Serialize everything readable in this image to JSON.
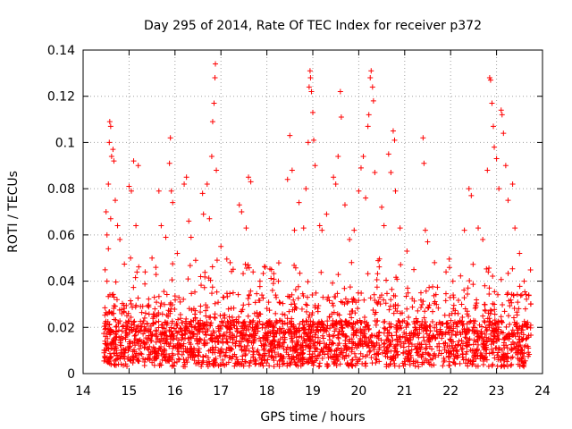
{
  "chart_data": {
    "type": "scatter",
    "title": "Day 295 of 2014, Rate Of TEC Index for receiver p372",
    "xlabel": "GPS time / hours",
    "ylabel": "ROTI / TECUs",
    "xlim": [
      14,
      24
    ],
    "ylim": [
      0,
      0.14
    ],
    "x_ticks": [
      14,
      15,
      16,
      17,
      18,
      19,
      20,
      21,
      22,
      23,
      24
    ],
    "y_ticks": [
      0,
      0.02,
      0.04,
      0.06,
      0.08,
      0.1,
      0.12,
      0.14
    ],
    "y_tick_labels": [
      "0",
      "0.02",
      "0.04",
      "0.06",
      "0.08",
      "0.1",
      "0.12",
      "0.14"
    ],
    "grid": true,
    "marker": "+",
    "color": "#ff0000",
    "x_range_data": [
      14.45,
      23.75
    ],
    "series": [
      {
        "name": "ROTI",
        "points": [
          [
            14.5,
            0.07
          ],
          [
            14.52,
            0.06
          ],
          [
            14.55,
            0.082
          ],
          [
            14.57,
            0.1
          ],
          [
            14.58,
            0.109
          ],
          [
            14.6,
            0.107
          ],
          [
            14.62,
            0.094
          ],
          [
            14.65,
            0.097
          ],
          [
            14.67,
            0.092
          ],
          [
            14.7,
            0.075
          ],
          [
            14.55,
            0.054
          ],
          [
            14.52,
            0.04
          ],
          [
            14.6,
            0.067
          ],
          [
            14.75,
            0.064
          ],
          [
            14.8,
            0.058
          ],
          [
            15.0,
            0.081
          ],
          [
            15.05,
            0.079
          ],
          [
            15.1,
            0.092
          ],
          [
            15.2,
            0.09
          ],
          [
            15.15,
            0.064
          ],
          [
            15.35,
            0.044
          ],
          [
            15.5,
            0.05
          ],
          [
            15.65,
            0.079
          ],
          [
            15.7,
            0.064
          ],
          [
            15.8,
            0.059
          ],
          [
            15.9,
            0.102
          ],
          [
            15.88,
            0.091
          ],
          [
            15.92,
            0.079
          ],
          [
            15.95,
            0.074
          ],
          [
            16.05,
            0.052
          ],
          [
            16.2,
            0.082
          ],
          [
            16.25,
            0.085
          ],
          [
            16.3,
            0.066
          ],
          [
            16.35,
            0.059
          ],
          [
            16.45,
            0.049
          ],
          [
            16.6,
            0.078
          ],
          [
            16.62,
            0.069
          ],
          [
            16.7,
            0.082
          ],
          [
            16.75,
            0.067
          ],
          [
            16.8,
            0.094
          ],
          [
            16.82,
            0.109
          ],
          [
            16.85,
            0.117
          ],
          [
            16.87,
            0.128
          ],
          [
            16.88,
            0.134
          ],
          [
            16.9,
            0.088
          ],
          [
            17.0,
            0.055
          ],
          [
            17.2,
            0.048
          ],
          [
            17.4,
            0.073
          ],
          [
            17.45,
            0.07
          ],
          [
            17.55,
            0.063
          ],
          [
            17.6,
            0.085
          ],
          [
            17.65,
            0.083
          ],
          [
            17.7,
            0.044
          ],
          [
            17.85,
            0.04
          ],
          [
            18.1,
            0.045
          ],
          [
            18.25,
            0.04
          ],
          [
            18.45,
            0.084
          ],
          [
            18.5,
            0.103
          ],
          [
            18.55,
            0.088
          ],
          [
            18.6,
            0.062
          ],
          [
            18.7,
            0.074
          ],
          [
            18.8,
            0.063
          ],
          [
            18.85,
            0.08
          ],
          [
            18.9,
            0.1
          ],
          [
            18.92,
            0.124
          ],
          [
            18.94,
            0.131
          ],
          [
            18.95,
            0.128
          ],
          [
            18.97,
            0.122
          ],
          [
            19.0,
            0.113
          ],
          [
            19.02,
            0.101
          ],
          [
            19.05,
            0.09
          ],
          [
            19.15,
            0.064
          ],
          [
            19.2,
            0.062
          ],
          [
            19.3,
            0.069
          ],
          [
            19.45,
            0.085
          ],
          [
            19.5,
            0.082
          ],
          [
            19.55,
            0.094
          ],
          [
            19.6,
            0.122
          ],
          [
            19.62,
            0.111
          ],
          [
            19.7,
            0.073
          ],
          [
            19.8,
            0.058
          ],
          [
            19.9,
            0.062
          ],
          [
            20.0,
            0.079
          ],
          [
            20.05,
            0.089
          ],
          [
            20.1,
            0.094
          ],
          [
            20.15,
            0.076
          ],
          [
            20.2,
            0.107
          ],
          [
            20.22,
            0.112
          ],
          [
            20.25,
            0.128
          ],
          [
            20.27,
            0.131
          ],
          [
            20.3,
            0.124
          ],
          [
            20.32,
            0.118
          ],
          [
            20.35,
            0.087
          ],
          [
            20.5,
            0.072
          ],
          [
            20.55,
            0.064
          ],
          [
            20.65,
            0.095
          ],
          [
            20.7,
            0.087
          ],
          [
            20.75,
            0.105
          ],
          [
            20.78,
            0.101
          ],
          [
            20.8,
            0.079
          ],
          [
            20.9,
            0.063
          ],
          [
            21.05,
            0.053
          ],
          [
            21.2,
            0.045
          ],
          [
            21.4,
            0.102
          ],
          [
            21.42,
            0.091
          ],
          [
            21.45,
            0.062
          ],
          [
            21.5,
            0.057
          ],
          [
            21.65,
            0.048
          ],
          [
            21.9,
            0.044
          ],
          [
            22.05,
            0.04
          ],
          [
            22.3,
            0.062
          ],
          [
            22.4,
            0.08
          ],
          [
            22.45,
            0.077
          ],
          [
            22.6,
            0.063
          ],
          [
            22.7,
            0.058
          ],
          [
            22.8,
            0.088
          ],
          [
            22.85,
            0.128
          ],
          [
            22.87,
            0.127
          ],
          [
            22.9,
            0.117
          ],
          [
            22.93,
            0.107
          ],
          [
            22.95,
            0.098
          ],
          [
            23.0,
            0.093
          ],
          [
            23.05,
            0.08
          ],
          [
            23.1,
            0.114
          ],
          [
            23.12,
            0.112
          ],
          [
            23.15,
            0.104
          ],
          [
            23.2,
            0.09
          ],
          [
            23.25,
            0.075
          ],
          [
            23.35,
            0.082
          ],
          [
            23.4,
            0.063
          ],
          [
            23.5,
            0.052
          ],
          [
            23.6,
            0.04
          ],
          [
            23.7,
            0.034
          ]
        ]
      }
    ]
  }
}
